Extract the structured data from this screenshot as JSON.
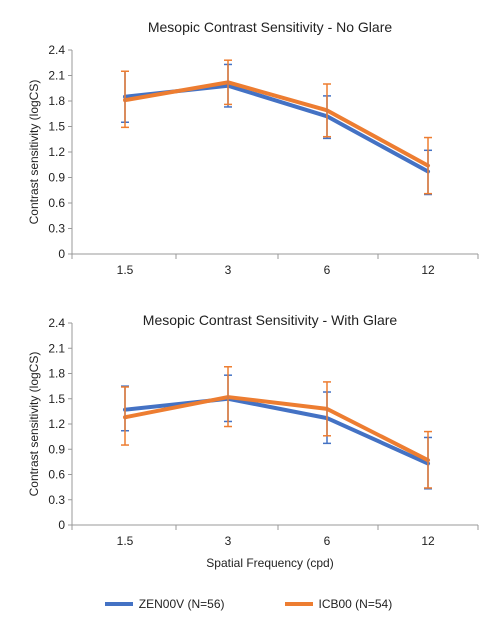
{
  "chart_data": [
    {
      "type": "line",
      "title": "Mesopic Contrast Sensitivity - No Glare",
      "xlabel": "",
      "ylabel": "Contrast sensitivity (logCS)",
      "categories": [
        "1.5",
        "3",
        "6",
        "12"
      ],
      "ylim": [
        0,
        2.4
      ],
      "yticks": [
        "0",
        "0.3",
        "0.6",
        "0.9",
        "1.2",
        "1.5",
        "1.8",
        "2.1",
        "2.4"
      ],
      "grid": false,
      "series": [
        {
          "name": "ZEN00V (N=56)",
          "color": "#4472C4",
          "values": [
            1.85,
            1.98,
            1.62,
            0.97
          ],
          "err_low": [
            1.55,
            1.73,
            1.36,
            0.7
          ],
          "err_high": [
            2.15,
            2.23,
            1.86,
            1.22
          ]
        },
        {
          "name": "ICB00 (N=54)",
          "color": "#ED7D31",
          "values": [
            1.81,
            2.02,
            1.69,
            1.04
          ],
          "err_low": [
            1.49,
            1.76,
            1.38,
            0.71
          ],
          "err_high": [
            2.15,
            2.28,
            2.0,
            1.37
          ]
        }
      ]
    },
    {
      "type": "line",
      "title": "Mesopic Contrast Sensitivity - With Glare",
      "xlabel": "Spatial Frequency (cpd)",
      "ylabel": "Contrast sensitivity (logCS)",
      "categories": [
        "1.5",
        "3",
        "6",
        "12"
      ],
      "ylim": [
        0,
        2.4
      ],
      "yticks": [
        "0",
        "0.3",
        "0.6",
        "0.9",
        "1.2",
        "1.5",
        "1.8",
        "2.1",
        "2.4"
      ],
      "grid": false,
      "series": [
        {
          "name": "ZEN00V (N=56)",
          "color": "#4472C4",
          "values": [
            1.37,
            1.5,
            1.27,
            0.73
          ],
          "err_low": [
            1.12,
            1.23,
            0.97,
            0.43
          ],
          "err_high": [
            1.65,
            1.78,
            1.58,
            1.04
          ]
        },
        {
          "name": "ICB00 (N=54)",
          "color": "#ED7D31",
          "values": [
            1.28,
            1.52,
            1.38,
            0.77
          ],
          "err_low": [
            0.95,
            1.17,
            1.06,
            0.44
          ],
          "err_high": [
            1.64,
            1.88,
            1.7,
            1.11
          ]
        }
      ]
    }
  ],
  "legend": [
    {
      "label": "ZEN00V (N=56)",
      "color": "#4472C4"
    },
    {
      "label": "ICB00 (N=54)",
      "color": "#ED7D31"
    }
  ]
}
